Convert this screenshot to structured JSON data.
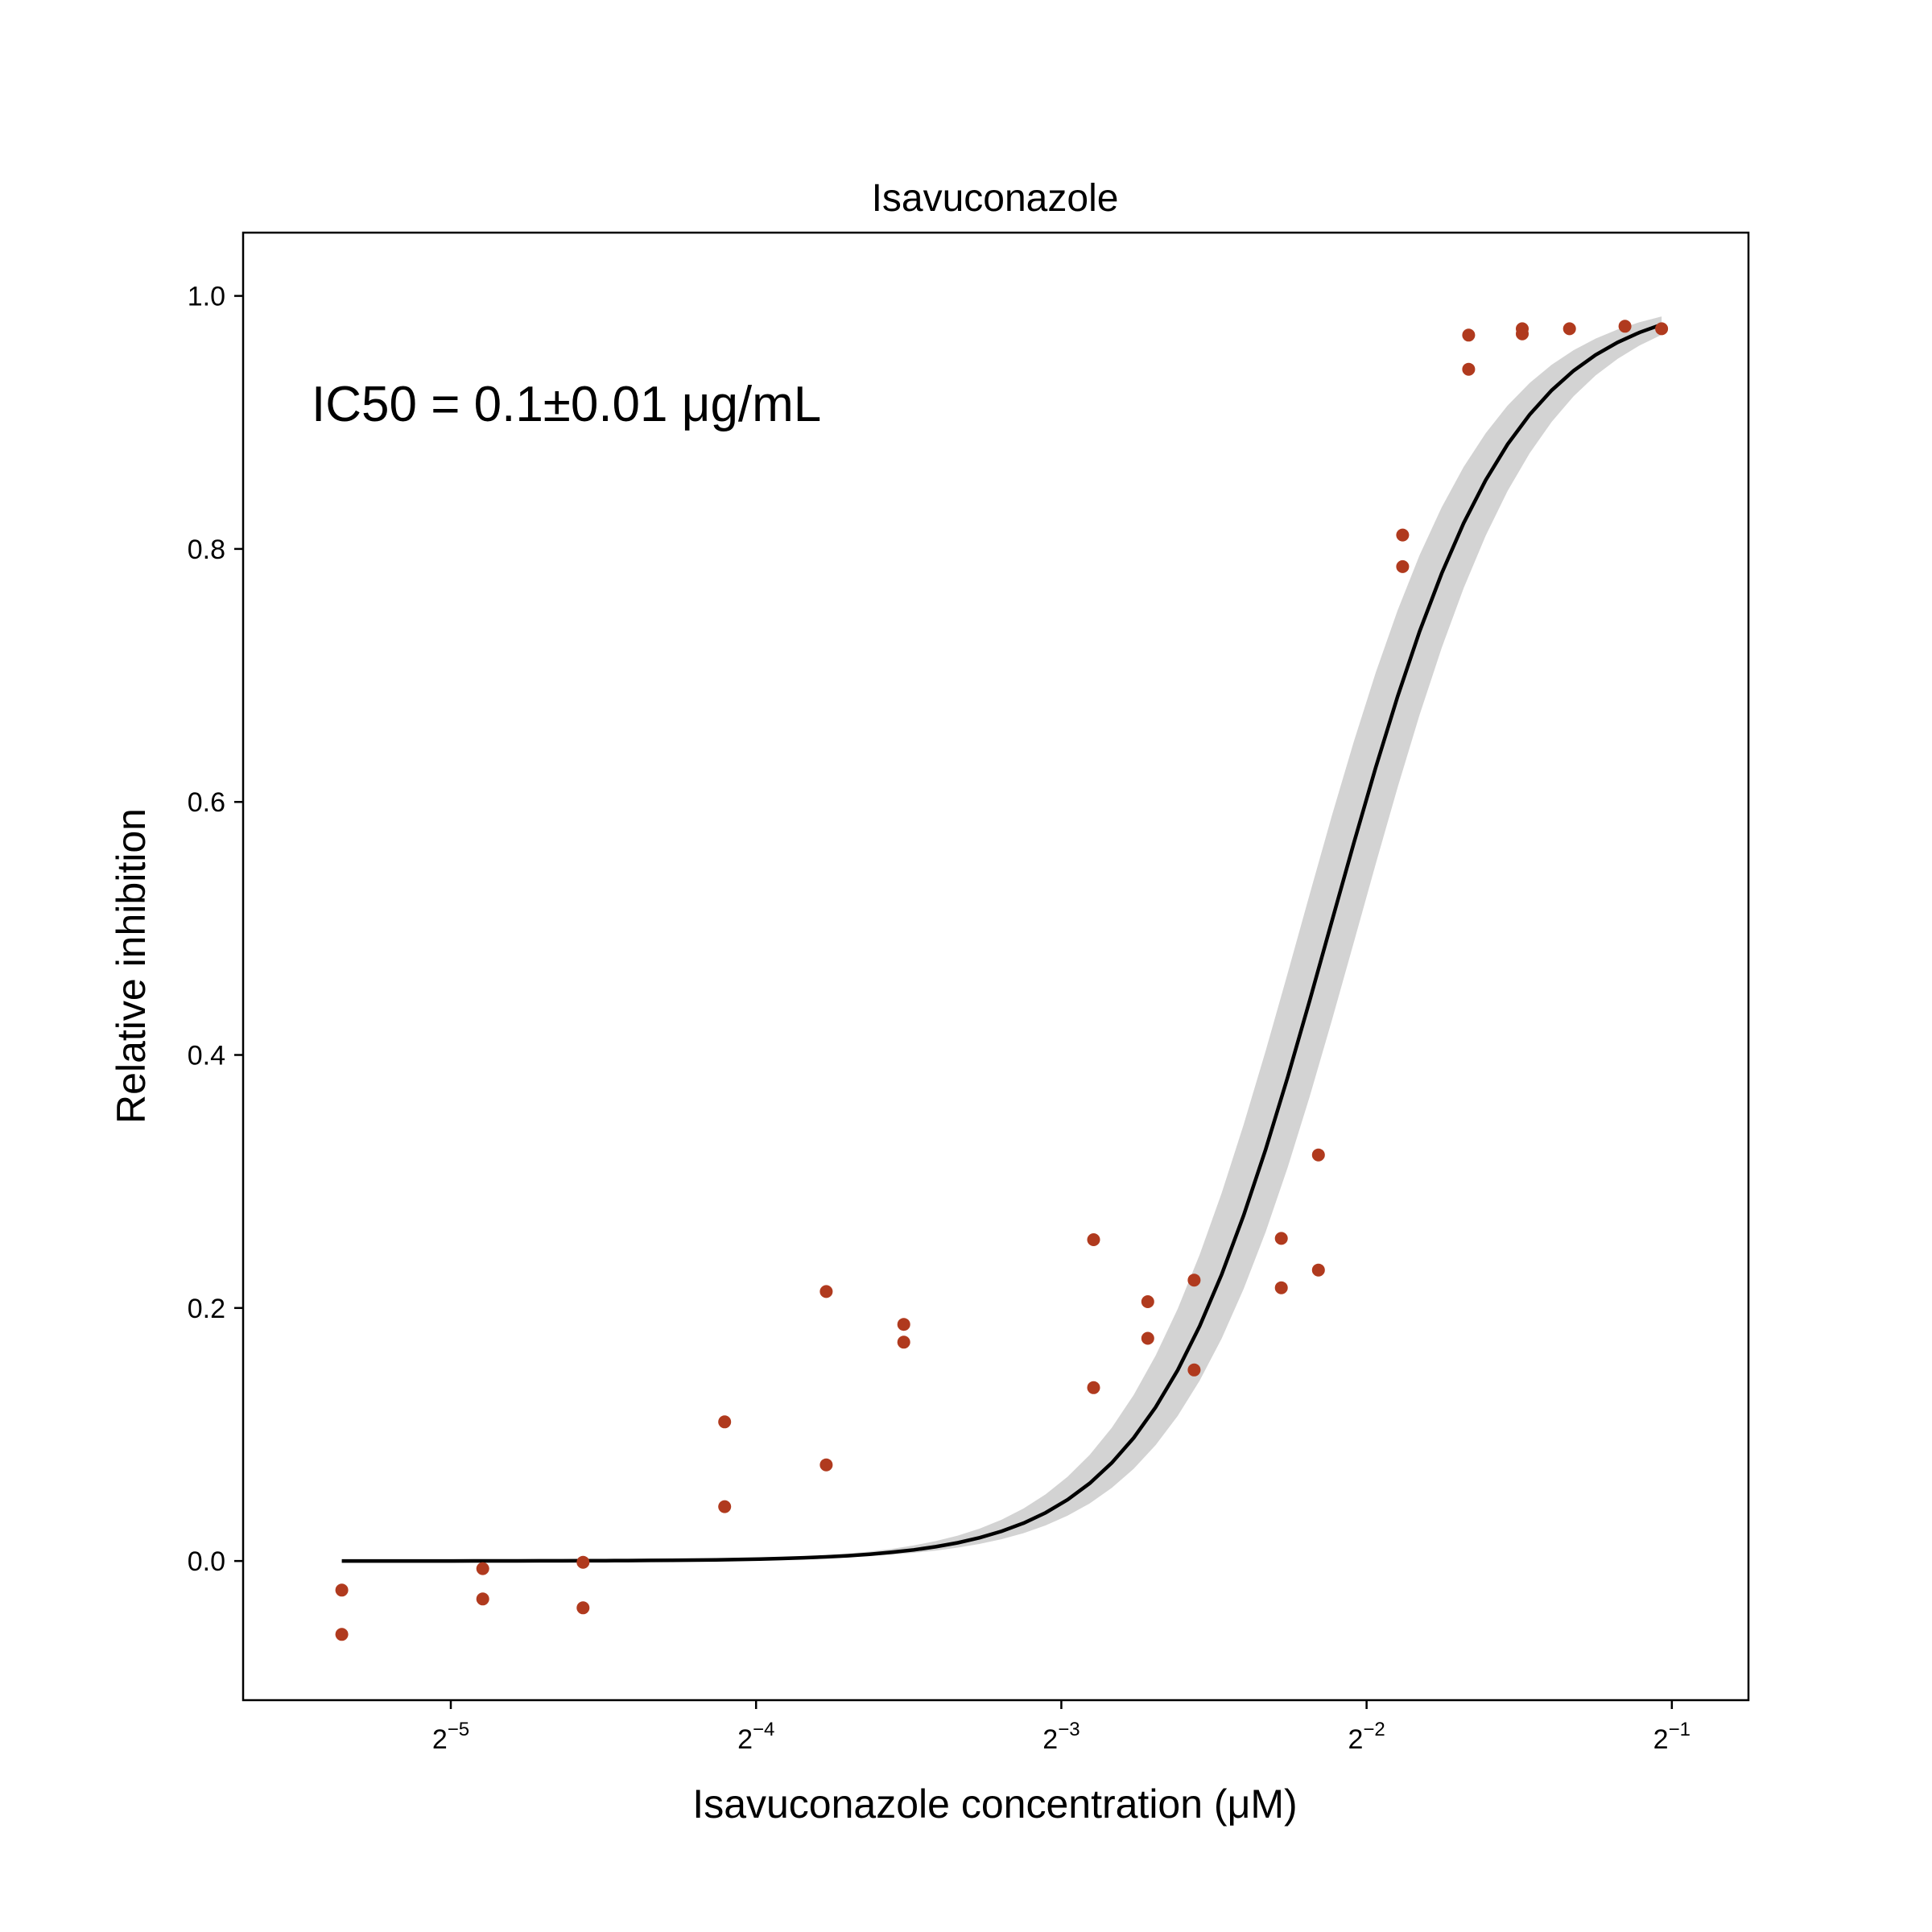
{
  "chart_data": {
    "type": "scatter",
    "title": "Isavuconazole",
    "xlabel": "Isavuconazole concentration (μM)",
    "ylabel": "Relative inhibition",
    "x_scale": "log2",
    "xlim": [
      0.0195,
      0.595
    ],
    "ylim": [
      -0.11,
      1.05
    ],
    "x_ticks": [
      {
        "value": 0.03125,
        "base": "2",
        "exp": "−5"
      },
      {
        "value": 0.0625,
        "base": "2",
        "exp": "−4"
      },
      {
        "value": 0.125,
        "base": "2",
        "exp": "−3"
      },
      {
        "value": 0.25,
        "base": "2",
        "exp": "−2"
      },
      {
        "value": 0.5,
        "base": "2",
        "exp": "−1"
      }
    ],
    "y_ticks": [
      {
        "value": 0.0,
        "label": "0.0"
      },
      {
        "value": 0.2,
        "label": "0.2"
      },
      {
        "value": 0.4,
        "label": "0.4"
      },
      {
        "value": 0.6,
        "label": "0.6"
      },
      {
        "value": 0.8,
        "label": "0.8"
      },
      {
        "value": 1.0,
        "label": "1.0"
      }
    ],
    "grid": false,
    "annotation": "IC50 = 0.1±0.01 μg/mL",
    "points": [
      {
        "x": 0.0244,
        "y": -0.023
      },
      {
        "x": 0.0244,
        "y": -0.058
      },
      {
        "x": 0.0336,
        "y": -0.006
      },
      {
        "x": 0.0336,
        "y": -0.03
      },
      {
        "x": 0.0422,
        "y": -0.001
      },
      {
        "x": 0.0422,
        "y": -0.037
      },
      {
        "x": 0.0582,
        "y": 0.11
      },
      {
        "x": 0.0582,
        "y": 0.043
      },
      {
        "x": 0.0733,
        "y": 0.213
      },
      {
        "x": 0.0733,
        "y": 0.076
      },
      {
        "x": 0.0874,
        "y": 0.187
      },
      {
        "x": 0.0874,
        "y": 0.173
      },
      {
        "x": 0.1345,
        "y": 0.254
      },
      {
        "x": 0.1345,
        "y": 0.137
      },
      {
        "x": 0.1521,
        "y": 0.205
      },
      {
        "x": 0.1521,
        "y": 0.176
      },
      {
        "x": 0.169,
        "y": 0.222
      },
      {
        "x": 0.169,
        "y": 0.151
      },
      {
        "x": 0.206,
        "y": 0.255
      },
      {
        "x": 0.206,
        "y": 0.216
      },
      {
        "x": 0.2241,
        "y": 0.321
      },
      {
        "x": 0.2241,
        "y": 0.23
      },
      {
        "x": 0.2713,
        "y": 0.811
      },
      {
        "x": 0.2713,
        "y": 0.786
      },
      {
        "x": 0.3152,
        "y": 0.969
      },
      {
        "x": 0.3152,
        "y": 0.942
      },
      {
        "x": 0.356,
        "y": 0.974
      },
      {
        "x": 0.356,
        "y": 0.97
      },
      {
        "x": 0.3963,
        "y": 0.974
      },
      {
        "x": 0.4495,
        "y": 0.976
      },
      {
        "x": 0.4885,
        "y": 0.974
      }
    ],
    "fit": {
      "ic50": 0.23,
      "hill": 5.0,
      "ic50_low": 0.215,
      "ic50_high": 0.245,
      "x_min": 0.0244,
      "x_max": 0.4885
    },
    "colors": {
      "points": "#b03a1e",
      "fit": "#000000",
      "band": "#d3d3d3"
    }
  }
}
